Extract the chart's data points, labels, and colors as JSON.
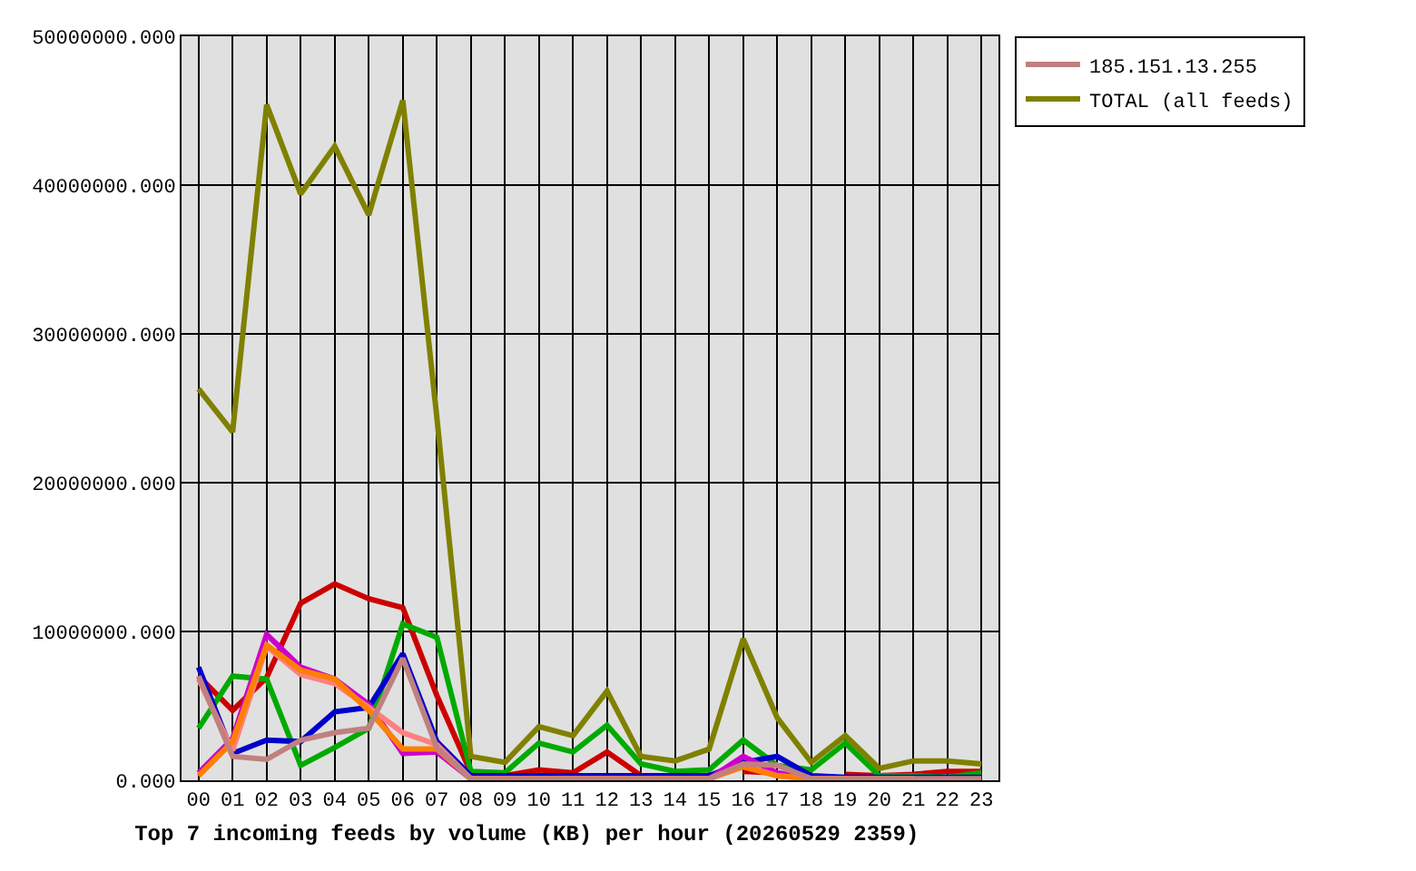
{
  "chart_data": {
    "type": "line",
    "title": "Top 7 incoming feeds by volume (KB) per hour (20260529 2359)",
    "categories": [
      "00",
      "01",
      "02",
      "03",
      "04",
      "05",
      "06",
      "07",
      "08",
      "09",
      "10",
      "11",
      "12",
      "13",
      "14",
      "15",
      "16",
      "17",
      "18",
      "19",
      "20",
      "21",
      "22",
      "23"
    ],
    "series": [
      {
        "color": "#cc0000",
        "values": [
          7000000.0,
          4700000.0,
          6900000.0,
          11900000.0,
          13200000.0,
          12200000.0,
          11600000.0,
          5700000.0,
          500000.0,
          300000.0,
          700000.0,
          500000.0,
          1900000.0,
          300000.0,
          null,
          null,
          600000.0,
          500000.0,
          null,
          400000.0,
          300000.0,
          400000.0,
          600000.0,
          600000.0
        ]
      },
      {
        "color": "#00aa00",
        "values": [
          3500000.0,
          7000000.0,
          6800000.0,
          1000000.0,
          2200000.0,
          3500000.0,
          10500000.0,
          9600000.0,
          600000.0,
          500000.0,
          2500000.0,
          1900000.0,
          3700000.0,
          1100000.0,
          600000.0,
          700000.0,
          2700000.0,
          1000000.0,
          700000.0,
          2500000.0,
          300000.0,
          300000.0,
          200000.0,
          500000.0
        ]
      },
      {
        "color": "#0000cc",
        "values": [
          7600000.0,
          1800000.0,
          2700000.0,
          2600000.0,
          4600000.0,
          4900000.0,
          8500000.0,
          2600000.0,
          300000.0,
          300000.0,
          300000.0,
          300000.0,
          300000.0,
          300000.0,
          300000.0,
          300000.0,
          1200000.0,
          1600000.0,
          300000.0,
          200000.0,
          200000.0,
          200000.0,
          200000.0,
          200000.0
        ]
      },
      {
        "color": "#cc00cc",
        "values": [
          500000.0,
          2800000.0,
          9800000.0,
          7600000.0,
          6800000.0,
          5100000.0,
          1800000.0,
          1900000.0,
          100000.0,
          100000.0,
          100000.0,
          100000.0,
          100000.0,
          100000.0,
          100000.0,
          100000.0,
          1600000.0,
          500000.0,
          100000.0,
          100000.0,
          null,
          null,
          null,
          null
        ]
      },
      {
        "color": "#ff8080",
        "values": [
          6800000.0,
          2000000.0,
          9000000.0,
          7100000.0,
          6500000.0,
          4900000.0,
          3200000.0,
          2400000.0,
          100000.0,
          100000.0,
          100000.0,
          100000.0,
          100000.0,
          100000.0,
          100000.0,
          100000.0,
          1000000.0,
          300000.0,
          100000.0,
          100000.0,
          100000.0,
          100000.0,
          null,
          null
        ]
      },
      {
        "color": "#ff8000",
        "values": [
          300000.0,
          2600000.0,
          9100000.0,
          7400000.0,
          6800000.0,
          4700000.0,
          2100000.0,
          2100000.0,
          100000.0,
          100000.0,
          100000.0,
          100000.0,
          100000.0,
          100000.0,
          100000.0,
          100000.0,
          900000.0,
          300000.0,
          100000.0,
          100000.0,
          null,
          null,
          null,
          null
        ]
      },
      {
        "name": "185.151.13.255",
        "color": "#c08080",
        "values": [
          7000000.0,
          1600000.0,
          1400000.0,
          2700000.0,
          3200000.0,
          3500000.0,
          8200000.0,
          2200000.0,
          100000.0,
          100000.0,
          100000.0,
          100000.0,
          100000.0,
          100000.0,
          100000.0,
          100000.0,
          1100000.0,
          1000000.0,
          100000.0,
          100000.0,
          100000.0,
          100000.0,
          100000.0,
          100000.0
        ]
      },
      {
        "name": "TOTAL (all feeds)",
        "color": "#808000",
        "values": [
          26300000.0,
          23400000.0,
          45400000.0,
          39400000.0,
          42600000.0,
          38000000.0,
          45700000.0,
          24400000.0,
          1600000.0,
          1200000.0,
          3600000.0,
          3000000.0,
          6000000.0,
          1600000.0,
          1300000.0,
          2100000.0,
          9500000.0,
          4200000.0,
          1200000.0,
          3000000.0,
          800000.0,
          1300000.0,
          1300000.0,
          1100000.0
        ]
      }
    ],
    "ylim": [
      0,
      50000000
    ],
    "yticks": [
      {
        "value": 0,
        "label": "0.000"
      },
      {
        "value": 10000000,
        "label": "10000000.000"
      },
      {
        "value": 20000000,
        "label": "20000000.000"
      },
      {
        "value": 30000000,
        "label": "30000000.000"
      },
      {
        "value": 40000000,
        "label": "40000000.000"
      },
      {
        "value": 50000000,
        "label": "50000000.000"
      }
    ],
    "grid": true,
    "legend": "top right"
  }
}
